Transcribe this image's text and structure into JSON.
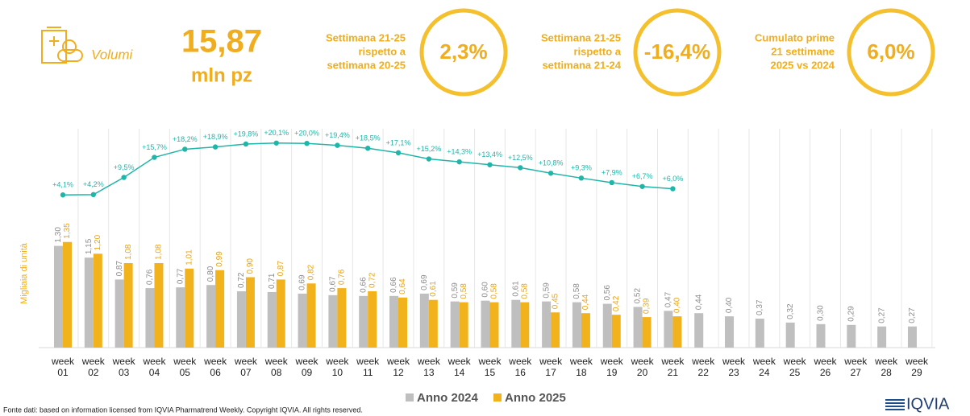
{
  "header": {
    "kpi_name": "Volumi",
    "kpi_value": "15,87",
    "kpi_unit": "mln pz",
    "cards": [
      {
        "label": [
          "Settimana 21-25",
          "rispetto a",
          "settimana 20-25"
        ],
        "value": "2,3%"
      },
      {
        "label": [
          "Settimana 21-25",
          "rispetto a",
          "settimana 21-24"
        ],
        "value": "-16,4%"
      },
      {
        "label": [
          "Cumulato prime",
          "21 settimane",
          "2025 vs 2024"
        ],
        "value": "6,0%"
      }
    ]
  },
  "chart_data": {
    "type": "bar",
    "y_label": "Migliaia di unità",
    "categories": [
      "week 01",
      "week 02",
      "week 03",
      "week 04",
      "week 05",
      "week 06",
      "week 07",
      "week 08",
      "week 09",
      "week 10",
      "week 11",
      "week 12",
      "week 13",
      "week 14",
      "week 15",
      "week 16",
      "week 17",
      "week 18",
      "week 19",
      "week 20",
      "week 21",
      "week 22",
      "week 23",
      "week 24",
      "week 25",
      "week 26",
      "week 27",
      "week 28",
      "week 29"
    ],
    "ylim": [
      0,
      2.9
    ],
    "y2lim": [
      -43,
      27
    ],
    "series": [
      {
        "name": "Anno 2024",
        "color": "#bfbfbf",
        "values": [
          1.3,
          1.15,
          0.87,
          0.76,
          0.77,
          0.8,
          0.72,
          0.71,
          0.69,
          0.67,
          0.66,
          0.66,
          0.69,
          0.59,
          0.6,
          0.61,
          0.59,
          0.58,
          0.56,
          0.52,
          0.47,
          0.44,
          0.4,
          0.37,
          0.32,
          0.3,
          0.29,
          0.27,
          0.27
        ],
        "value_labels": [
          "1,30",
          "1,15",
          "0,87",
          "0,76",
          "0,77",
          "0,80",
          "0,72",
          "0,71",
          "0,69",
          "0,67",
          "0,66",
          "0,66",
          "0,69",
          "0,59",
          "0,60",
          "0,61",
          "0,59",
          "0,58",
          "0,56",
          "0,52",
          "0,47",
          "0,44",
          "0,40",
          "0,37",
          "0,32",
          "0,30",
          "0,29",
          "0,27",
          "0,27"
        ]
      },
      {
        "name": "Anno 2025",
        "color": "#f2b21b",
        "values": [
          1.35,
          1.2,
          1.08,
          1.08,
          1.01,
          0.99,
          0.9,
          0.87,
          0.82,
          0.76,
          0.72,
          0.64,
          0.61,
          0.58,
          0.58,
          0.58,
          0.45,
          0.44,
          0.42,
          0.39,
          0.4,
          null,
          null,
          null,
          null,
          null,
          null,
          null,
          null
        ],
        "value_labels": [
          "1,35",
          "1,20",
          "1,08",
          "1,08",
          "1,01",
          "0,99",
          "0,90",
          "0,87",
          "0,82",
          "0,76",
          "0,72",
          "0,64",
          "0,61",
          "0,58",
          "0,58",
          "0,58",
          "0,45",
          "0,44",
          "0,42",
          "0,39",
          "0,40",
          null,
          null,
          null,
          null,
          null,
          null,
          null,
          null
        ]
      },
      {
        "type": "line",
        "axis": "y2",
        "color": "#1fb5a9",
        "values": [
          4.1,
          4.2,
          9.5,
          15.7,
          18.2,
          18.9,
          19.8,
          20.1,
          20.0,
          19.4,
          18.5,
          17.1,
          15.2,
          14.3,
          13.4,
          12.5,
          10.8,
          9.3,
          7.9,
          6.7,
          6.0,
          null,
          null,
          null,
          null,
          null,
          null,
          null,
          null
        ],
        "value_labels": [
          "+4,1%",
          "+4,2%",
          "+9,5%",
          "+15,7%",
          "+18,2%",
          "+18,9%",
          "+19,8%",
          "+20,1%",
          "+20,0%",
          "+19,4%",
          "+18,5%",
          "+17,1%",
          "+15,2%",
          "+14,3%",
          "+13,4%",
          "+12,5%",
          "+10,8%",
          "+9,3%",
          "+7,9%",
          "+6,7%",
          "+6,0%",
          null,
          null,
          null,
          null,
          null,
          null,
          null,
          null
        ]
      }
    ]
  },
  "footer": {
    "source": "Fonte dati: based on information licensed from IQVIA Pharmatrend Weekly. Copyright IQVIA. All rights reserved.",
    "logo": "IQVIA"
  }
}
